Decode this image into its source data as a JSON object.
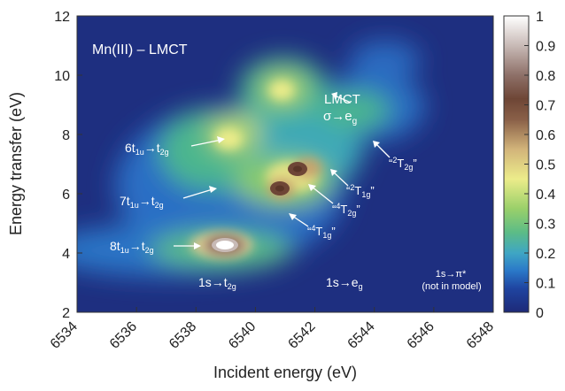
{
  "chart_data": {
    "type": "heatmap",
    "title": "Mn(III) – LMCT",
    "xlabel": "Incident energy (eV)",
    "ylabel": "Energy transfer (eV)",
    "xlim": [
      6534,
      6548
    ],
    "ylim": [
      2,
      12
    ],
    "x_ticks": [
      6534,
      6536,
      6538,
      6540,
      6542,
      6544,
      6546,
      6548
    ],
    "y_ticks": [
      2,
      4,
      6,
      8,
      10,
      12
    ],
    "colorbar": {
      "range": [
        0,
        1
      ],
      "ticks": [
        "0",
        "0.1",
        "0.2",
        "0.3",
        "0.4",
        "0.5",
        "0.6",
        "0.7",
        "0.8",
        "0.9",
        "1"
      ]
    },
    "peaks": [
      {
        "x": 6539.1,
        "y": 4.25,
        "intensity": 1.0
      },
      {
        "x": 6541.5,
        "y": 6.75,
        "intensity": 0.7
      },
      {
        "x": 6540.9,
        "y": 6.1,
        "intensity": 0.65
      },
      {
        "x": 6540.9,
        "y": 9.4,
        "intensity": 0.35
      },
      {
        "x": 6539.1,
        "y": 7.8,
        "intensity": 0.35
      },
      {
        "x": 6543.6,
        "y": 10.55,
        "intensity": 0.1
      }
    ],
    "annotations": {
      "mn_label": "Mn(III) – LMCT",
      "lmct": {
        "line1": "LMCT",
        "line2": "σ→e",
        "sub": "g"
      },
      "t6": {
        "a": "6t",
        "b": "1u",
        "c": "→t",
        "d": "2g"
      },
      "t7": {
        "a": "7t",
        "b": "1u",
        "c": "→t",
        "d": "2g"
      },
      "t8": {
        "a": "8t",
        "b": "1u",
        "c": "→t",
        "d": "2g"
      },
      "s_t2g": {
        "a": "1s→t",
        "b": "2g"
      },
      "s_eg": {
        "a": "1s→e",
        "b": "g"
      },
      "s_pi": {
        "a": "1s→π*",
        "b": "(not in model)"
      },
      "term_2T2g": {
        "pre": "“",
        "sup": "2",
        "base": "T",
        "sub": "2g",
        "post": "”"
      },
      "term_2T1g": {
        "pre": "“",
        "sup": "2",
        "base": "T",
        "sub": "1g",
        "post": "”"
      },
      "term_4T2g": {
        "pre": "“",
        "sup": "4",
        "base": "T",
        "sub": "2g",
        "post": "”"
      },
      "term_4T1g": {
        "pre": "“",
        "sup": "4",
        "base": "T",
        "sub": "1g",
        "post": "”"
      }
    }
  }
}
